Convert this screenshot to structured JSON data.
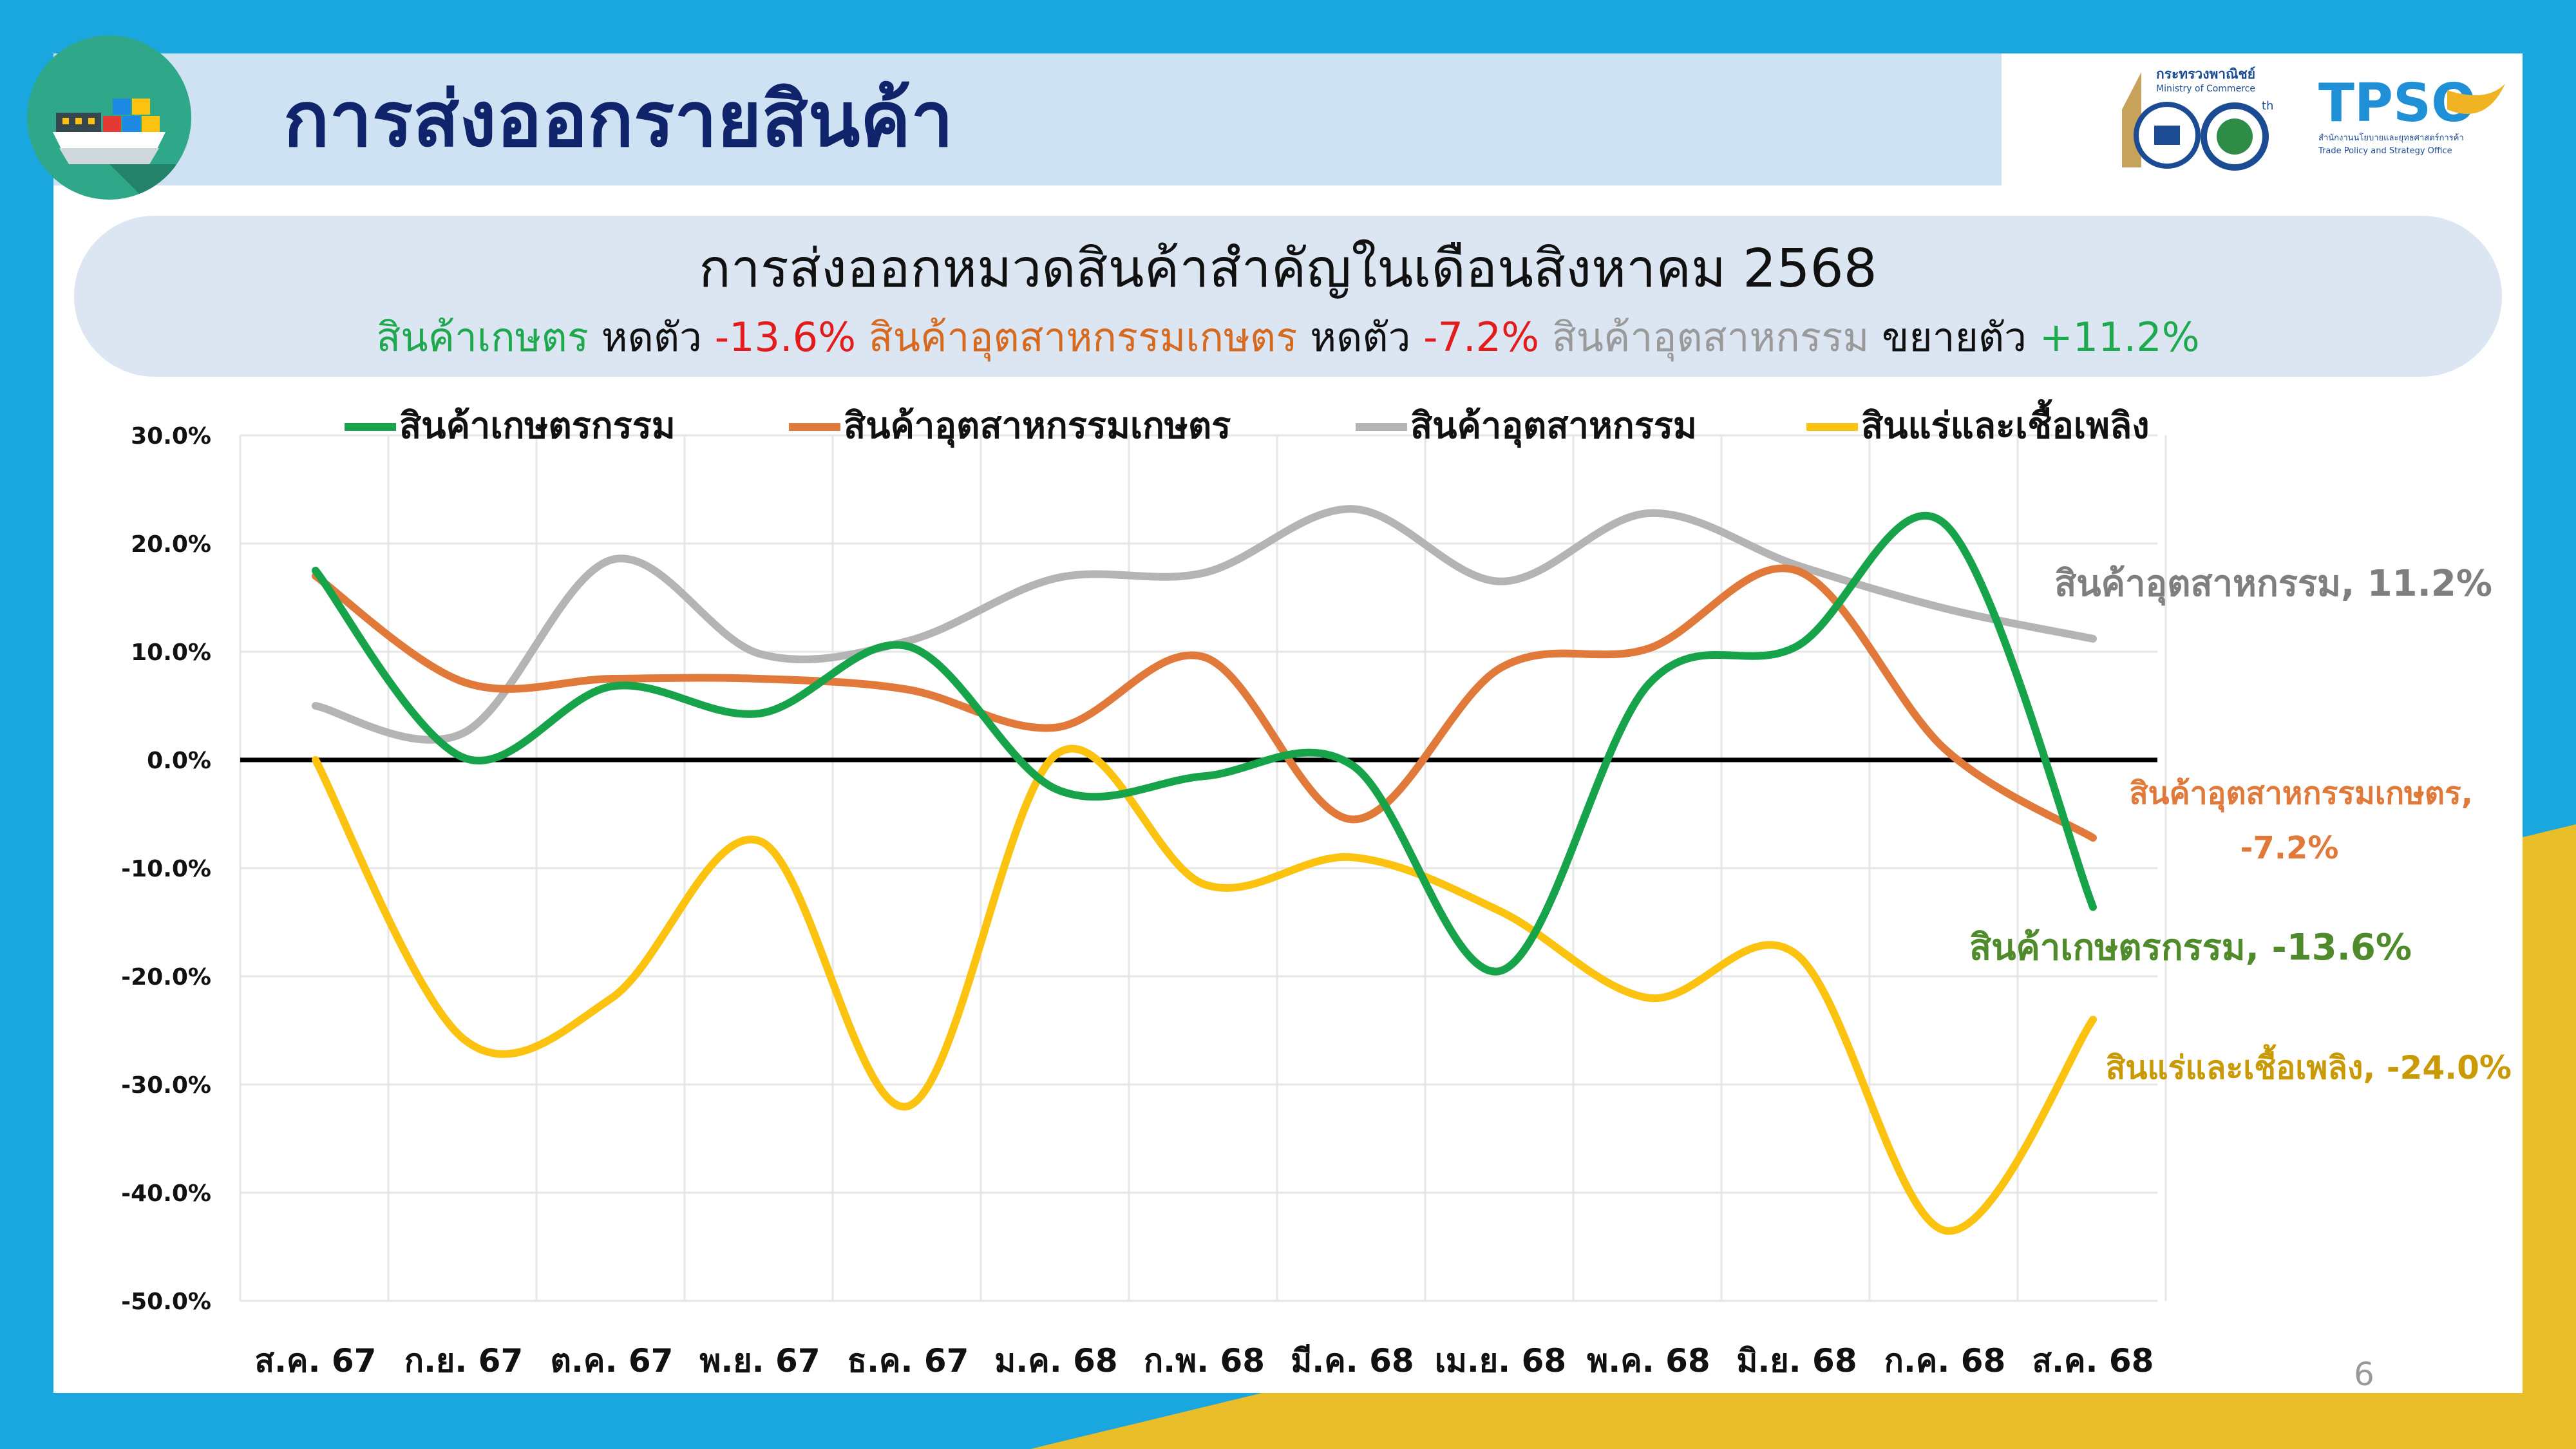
{
  "slide": {
    "title": "การส่งออกรายสินค้า",
    "page_number": "6",
    "logo_ministry_text": "กระทรวงพาณิชย์",
    "logo_ministry_en": "Ministry of Commerce",
    "logo_105": "105",
    "logo_th": "th",
    "logo_tpso": "TPSO",
    "logo_tpso_th": "สำนักงานนโยบายและยุทธศาสตร์การค้า",
    "logo_tpso_en": "Trade Policy and Strategy Office"
  },
  "subtitle": {
    "line1": "การส่งออกหมวดสินค้าสำคัญในเดือนสิงหาคม 2568",
    "agri_label": "สินค้าเกษตร",
    "agri_verb": "หดตัว",
    "agri_value": "-13.6%",
    "agroind_label": "สินค้าอุตสาหกรรมเกษตร",
    "agroind_verb": "หดตัว",
    "agroind_value": "-7.2%",
    "ind_label": "สินค้าอุตสาหกรรม",
    "ind_verb": "ขยายตัว",
    "ind_value": "+11.2%"
  },
  "colors": {
    "agri": "#17a34a",
    "agroind": "#e0793a",
    "ind": "#b4b4b4",
    "mineral": "#fbc20f",
    "agri_label": "#4f8a2b",
    "mineral_label": "#c99a06"
  },
  "chart_data": {
    "type": "line",
    "categories": [
      "ส.ค. 67",
      "ก.ย. 67",
      "ต.ค. 67",
      "พ.ย. 67",
      "ธ.ค. 67",
      "ม.ค. 68",
      "ก.พ. 68",
      "มี.ค. 68",
      "เม.ย. 68",
      "พ.ค. 68",
      "มิ.ย. 68",
      "ก.ค. 68",
      "ส.ค. 68"
    ],
    "ylim": [
      -50,
      30
    ],
    "yticks": [
      "30.0%",
      "20.0%",
      "10.0%",
      "0.0%",
      "-10.0%",
      "-20.0%",
      "-30.0%",
      "-40.0%",
      "-50.0%"
    ],
    "grid": true,
    "legend_position": "top",
    "series": [
      {
        "name": "สินค้าเกษตรกรรม",
        "color_key": "agri",
        "values": [
          17.5,
          0.2,
          6.8,
          4.3,
          10.5,
          -2.7,
          -1.5,
          -0.5,
          -19.5,
          7.0,
          10.5,
          21.8,
          -13.6
        ],
        "end_label": "สินค้าเกษตรกรรม, -13.6%"
      },
      {
        "name": "สินค้าอุตสาหกรรมเกษตร",
        "color_key": "agroind",
        "values": [
          17.0,
          7.2,
          7.5,
          7.5,
          6.5,
          3.0,
          9.5,
          -5.5,
          8.5,
          10.3,
          17.5,
          1.0,
          -7.2
        ],
        "end_label_1": "สินค้าอุตสาหกรรมเกษตร,",
        "end_label_2": "-7.2%"
      },
      {
        "name": "สินค้าอุตสาหกรรม",
        "color_key": "ind",
        "values": [
          5.0,
          2.5,
          18.5,
          9.8,
          11.0,
          16.8,
          17.3,
          23.2,
          16.5,
          22.8,
          18.0,
          14.0,
          11.2
        ],
        "end_label": "สินค้าอุตสาหกรรม, 11.2%"
      },
      {
        "name": "สินแร่และเชื้อเพลิง",
        "color_key": "mineral",
        "values": [
          0.0,
          -25.8,
          -22.0,
          -7.5,
          -32.0,
          0.5,
          -11.5,
          -9.0,
          -14.0,
          -22.0,
          -18.0,
          -43.5,
          -24.0
        ],
        "end_label": "สินแร่และเชื้อเพลิง, -24.0%"
      }
    ]
  }
}
